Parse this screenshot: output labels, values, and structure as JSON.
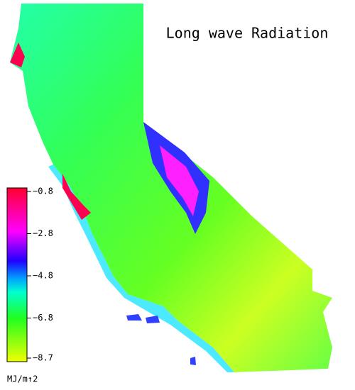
{
  "title": "Long wave Radiation",
  "colorbar": {
    "unit": "MJ/m↑2",
    "ticks": [
      {
        "value": -0.8,
        "label": "−0.8"
      },
      {
        "value": -2.8,
        "label": "−2.8"
      },
      {
        "value": -4.8,
        "label": "−4.8"
      },
      {
        "value": -6.8,
        "label": "−6.8"
      },
      {
        "value": -8.7,
        "label": "−8.7"
      }
    ]
  }
}
